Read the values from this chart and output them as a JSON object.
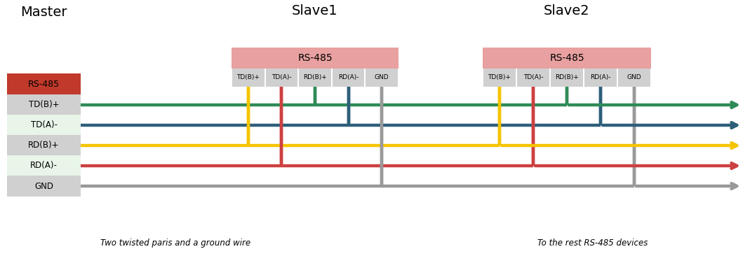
{
  "title_master": "Master",
  "title_slave1": "Slave1",
  "title_slave2": "Slave2",
  "master_box_label": "RS-485",
  "rs485_header_color": "#e8a0a0",
  "master_rs485_color": "#c0392b",
  "pin_colors_master": [
    "#d0d0d0",
    "#e8f5e8",
    "#d0d0d0",
    "#e8f5e8",
    "#d0d0d0"
  ],
  "pin_labels": [
    "TD(B)+",
    "TD(A)-",
    "RD(B)+",
    "RD(A)-",
    "GND"
  ],
  "green": "#2e8b57",
  "blue": "#2e5f7a",
  "yellow": "#f5c400",
  "red": "#cd4040",
  "gray": "#999999",
  "note_left": "Two twisted paris and a ground wire",
  "note_right": "To the rest RS-485 devices",
  "bg_color": "#ffffff",
  "lw": 3.2
}
